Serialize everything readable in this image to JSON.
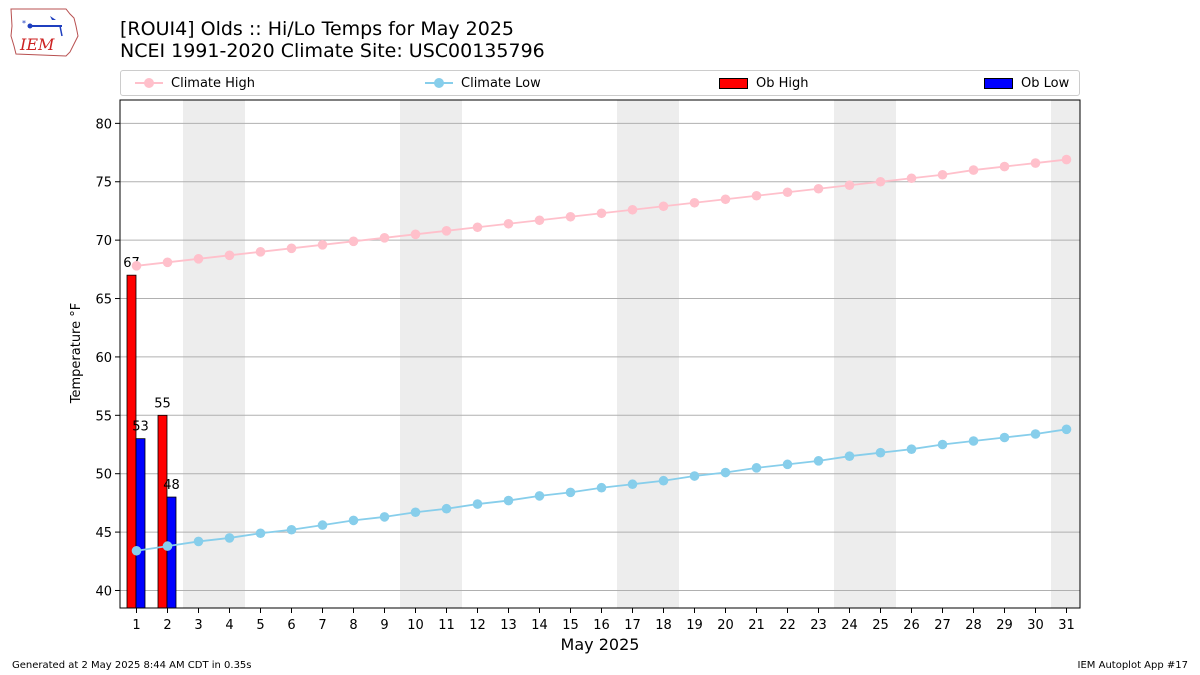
{
  "header": {
    "title_line1": "[ROUI4] Olds :: Hi/Lo Temps for May 2025",
    "title_line2": "NCEI 1991-2020 Climate Site: USC00135796",
    "logo_text": "IEM"
  },
  "legend": {
    "climate_high": "Climate High",
    "climate_low": "Climate Low",
    "ob_high": "Ob High",
    "ob_low": "Ob Low"
  },
  "colors": {
    "climate_high": "#ffc0cb",
    "climate_low": "#87ceeb",
    "ob_high": "#ff0000",
    "ob_low": "#0000ff",
    "weekend_shade": "#ededed",
    "grid": "#b0b0b0"
  },
  "chart_data": {
    "type": "bar",
    "title": "[ROUI4] Olds :: Hi/Lo Temps for May 2025",
    "subtitle": "NCEI 1991-2020 Climate Site: USC00135796",
    "xlabel": "May 2025",
    "ylabel": "Temperature °F",
    "ylim": [
      38.5,
      82
    ],
    "yticks": [
      40,
      45,
      50,
      55,
      60,
      65,
      70,
      75,
      80
    ],
    "grid": true,
    "legend_position": "top",
    "days": [
      1,
      2,
      3,
      4,
      5,
      6,
      7,
      8,
      9,
      10,
      11,
      12,
      13,
      14,
      15,
      16,
      17,
      18,
      19,
      20,
      21,
      22,
      23,
      24,
      25,
      26,
      27,
      28,
      29,
      30,
      31
    ],
    "weekend_shaded_days": [
      3,
      4,
      10,
      11,
      17,
      18,
      24,
      25,
      31
    ],
    "series": [
      {
        "name": "Climate High",
        "kind": "line",
        "values": [
          67.8,
          68.1,
          68.4,
          68.7,
          69.0,
          69.3,
          69.6,
          69.9,
          70.2,
          70.5,
          70.8,
          71.1,
          71.4,
          71.7,
          72.0,
          72.3,
          72.6,
          72.9,
          73.2,
          73.5,
          73.8,
          74.1,
          74.4,
          74.7,
          75.0,
          75.3,
          75.6,
          76.0,
          76.3,
          76.6,
          76.9
        ]
      },
      {
        "name": "Climate Low",
        "kind": "line",
        "values": [
          43.4,
          43.8,
          44.2,
          44.5,
          44.9,
          45.2,
          45.6,
          46.0,
          46.3,
          46.7,
          47.0,
          47.4,
          47.7,
          48.1,
          48.4,
          48.8,
          49.1,
          49.4,
          49.8,
          50.1,
          50.5,
          50.8,
          51.1,
          51.5,
          51.8,
          52.1,
          52.5,
          52.8,
          53.1,
          53.4,
          53.8
        ]
      },
      {
        "name": "Ob High",
        "kind": "bar",
        "days": [
          1,
          2
        ],
        "values": [
          67,
          55
        ],
        "labels": [
          "67",
          "55"
        ]
      },
      {
        "name": "Ob Low",
        "kind": "bar",
        "days": [
          1,
          2
        ],
        "values": [
          53,
          48
        ],
        "labels": [
          "53",
          "48"
        ]
      }
    ]
  },
  "footer": {
    "generated": "Generated at 2 May 2025 8:44 AM CDT in 0.35s",
    "app": "IEM Autoplot App #17"
  }
}
